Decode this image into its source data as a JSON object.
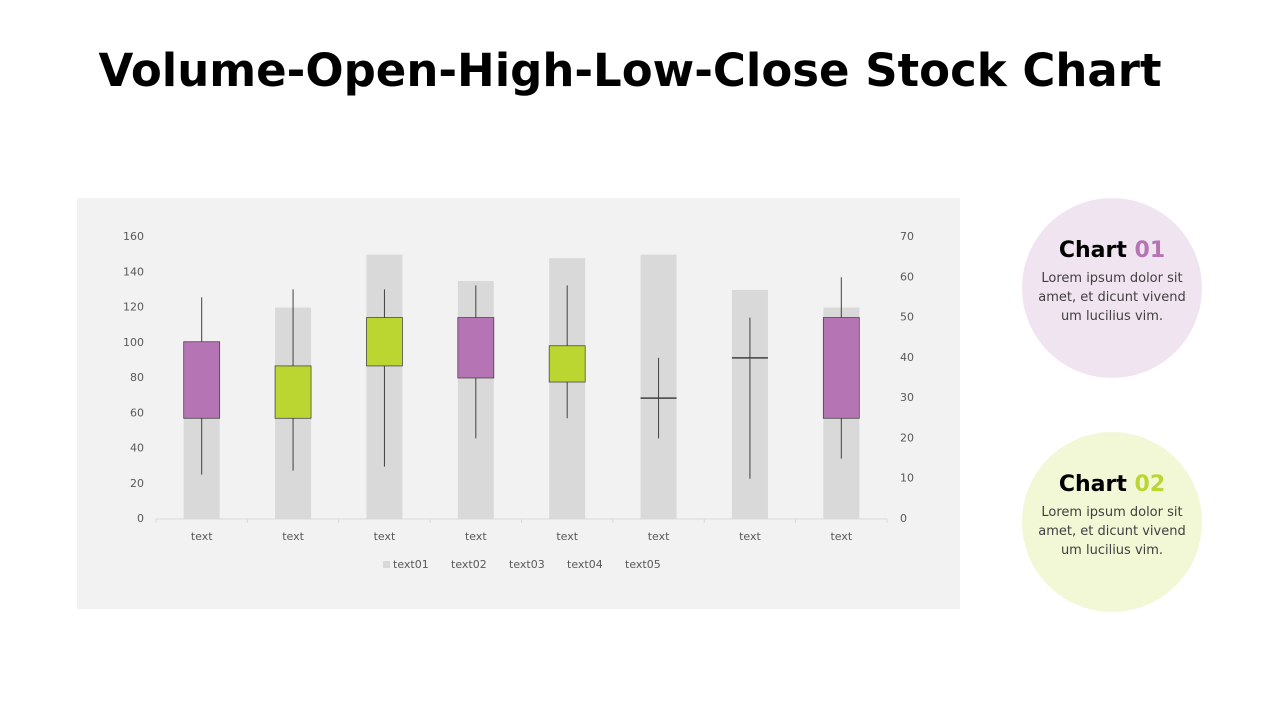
{
  "chart_data": {
    "type": "candlestick",
    "title": "Volume-Open-High-Low-Close Stock Chart",
    "categories": [
      "text",
      "text",
      "text",
      "text",
      "text",
      "text",
      "text",
      "text"
    ],
    "series": [
      {
        "name": "text01",
        "color": "#d9d9d9",
        "role": "volume",
        "values": [
          100,
          120,
          150,
          135,
          148,
          150,
          130,
          120
        ]
      },
      {
        "name": "text02",
        "role": "open",
        "axis": "y2",
        "values": [
          44,
          25,
          38,
          50,
          34,
          30,
          40,
          50
        ]
      },
      {
        "name": "text03",
        "role": "high",
        "axis": "y2",
        "values": [
          55,
          57,
          57,
          58,
          58,
          40,
          50,
          60
        ]
      },
      {
        "name": "text04",
        "role": "low",
        "axis": "y2",
        "values": [
          11,
          12,
          13,
          20,
          25,
          20,
          10,
          15
        ]
      },
      {
        "name": "text05",
        "role": "close",
        "axis": "y2",
        "values": [
          25,
          38,
          50,
          35,
          43,
          30,
          40,
          25
        ]
      }
    ],
    "up_color": "#bcd631",
    "down_color": "#b574b3",
    "ylim": [
      0,
      160
    ],
    "yticks": [
      0,
      20,
      40,
      60,
      80,
      100,
      120,
      140,
      160
    ],
    "y2lim": [
      0,
      70
    ],
    "y2ticks": [
      0,
      10,
      20,
      30,
      40,
      50,
      60,
      70
    ]
  },
  "panels": [
    {
      "title": "Chart",
      "number": "01",
      "color": "#b574b3",
      "background": "#f0e4f0",
      "text": "Lorem ipsum dolor sit amet, et dicunt vivend um lucilius vim."
    },
    {
      "title": "Chart",
      "number": "02",
      "color": "#bcd631",
      "background": "#f2f7d6",
      "text": "Lorem ipsum dolor sit amet, et dicunt vivend um lucilius vim."
    }
  ]
}
